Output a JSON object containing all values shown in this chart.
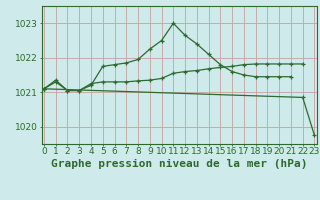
{
  "background_color": "#ceeaea",
  "grid_color": "#c8a0a0",
  "line_color": "#2d6a2d",
  "title": "Graphe pression niveau de la mer (hPa)",
  "hours": [
    0,
    1,
    2,
    3,
    4,
    5,
    6,
    7,
    8,
    9,
    10,
    11,
    12,
    13,
    14,
    15,
    16,
    17,
    18,
    19,
    20,
    21,
    22,
    23
  ],
  "ylim": [
    1019.5,
    1023.5
  ],
  "yticks": [
    1020,
    1021,
    1022,
    1023
  ],
  "xlim": [
    -0.2,
    23.2
  ],
  "series1_x": [
    0,
    1,
    2,
    3,
    4,
    5,
    6,
    7,
    8,
    9,
    10,
    11,
    12,
    13,
    14,
    15,
    16,
    17,
    18,
    19,
    20,
    21
  ],
  "series1_y": [
    1021.1,
    1021.35,
    1021.05,
    1021.05,
    1021.2,
    1021.75,
    1021.8,
    1021.85,
    1021.95,
    1022.25,
    1022.5,
    1023.0,
    1022.65,
    1022.4,
    1022.1,
    1021.8,
    1021.6,
    1021.5,
    1021.45,
    1021.45,
    1021.45,
    1021.45
  ],
  "series2_x": [
    0,
    1,
    2,
    3,
    4,
    5,
    6,
    7,
    8,
    9,
    10,
    11,
    12,
    13,
    14,
    15,
    16,
    17,
    18,
    19,
    20,
    21,
    22
  ],
  "series2_y": [
    1021.1,
    1021.3,
    1021.05,
    1021.05,
    1021.25,
    1021.3,
    1021.3,
    1021.3,
    1021.33,
    1021.35,
    1021.4,
    1021.55,
    1021.6,
    1021.63,
    1021.68,
    1021.72,
    1021.75,
    1021.8,
    1021.82,
    1021.82,
    1021.82,
    1021.82,
    1021.82
  ],
  "series3_x": [
    0,
    22,
    23
  ],
  "series3_y": [
    1021.1,
    1020.85,
    1019.75
  ],
  "title_fontsize": 8,
  "tick_fontsize": 6.5
}
